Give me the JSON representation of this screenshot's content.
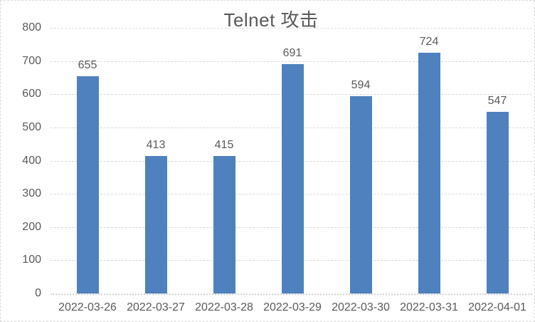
{
  "chart_data": {
    "type": "bar",
    "title": "Telnet 攻击",
    "categories": [
      "2022-03-26",
      "2022-03-27",
      "2022-03-28",
      "2022-03-29",
      "2022-03-30",
      "2022-03-31",
      "2022-04-01"
    ],
    "values": [
      655,
      413,
      415,
      691,
      594,
      724,
      547
    ],
    "xlabel": "",
    "ylabel": "",
    "ylim": [
      0,
      800
    ],
    "yticks": [
      0,
      100,
      200,
      300,
      400,
      500,
      600,
      700,
      800
    ],
    "grid": true,
    "legend": false,
    "data_labels": true,
    "colors": {
      "bar": "#4e81bd",
      "text": "#595959",
      "gridline": "#d9d9d9",
      "axis_line": "#d2d2d2",
      "frame_border": "#d9d9d9",
      "background": "#ffffff"
    }
  }
}
